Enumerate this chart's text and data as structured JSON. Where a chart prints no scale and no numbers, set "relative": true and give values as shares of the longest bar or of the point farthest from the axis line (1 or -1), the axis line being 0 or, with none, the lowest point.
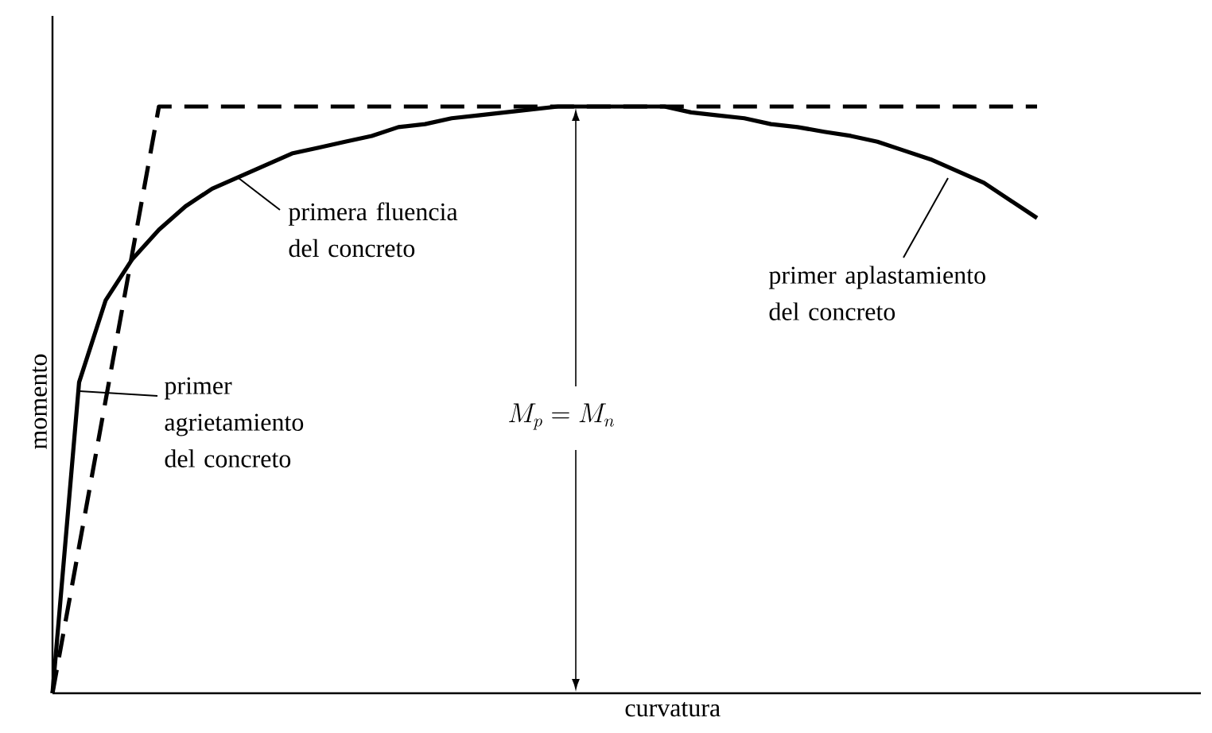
{
  "chart_data": {
    "type": "line",
    "relative": true,
    "marker": "none",
    "xlabel": "curvatura",
    "ylabel": "momento",
    "categories": [
      null,
      null,
      null,
      null,
      null,
      null,
      null,
      null,
      null,
      null,
      null,
      null,
      null,
      null,
      null,
      null,
      null,
      null,
      null,
      null,
      null,
      null,
      null,
      null,
      null,
      null,
      null,
      null,
      null,
      null,
      null,
      null,
      null,
      null,
      null,
      null,
      null,
      null
    ],
    "series": [
      {
        "color": "#000000",
        "line_style": "dashed",
        "values": [
          0,
          0.25,
          0.5,
          0.75,
          1,
          1,
          1,
          1,
          1,
          1,
          1,
          1,
          1,
          1,
          1,
          1,
          1,
          1,
          1,
          1,
          1,
          1,
          1,
          1,
          1,
          1,
          1,
          1,
          1,
          1,
          1,
          1,
          1,
          1,
          1,
          1,
          1,
          1
        ]
      },
      {
        "color": "#000000",
        "line_style": "solid",
        "values": [
          0,
          0.53,
          0.67,
          0.74,
          0.79,
          0.83,
          0.86,
          0.88,
          0.9,
          0.92,
          0.93,
          0.94,
          0.95,
          0.965,
          0.97,
          0.98,
          0.985,
          0.99,
          0.995,
          1,
          1,
          1,
          1,
          1,
          0.99,
          0.985,
          0.98,
          0.97,
          0.965,
          0.957,
          0.95,
          0.94,
          0.925,
          0.91,
          0.89,
          0.87,
          0.84,
          0.81
        ]
      }
    ],
    "annotations": [
      "primera fluencia del concreto",
      "primer agrietamiento del concreto",
      "primer aplastamiento del concreto",
      "M_p = M_n"
    ]
  }
}
